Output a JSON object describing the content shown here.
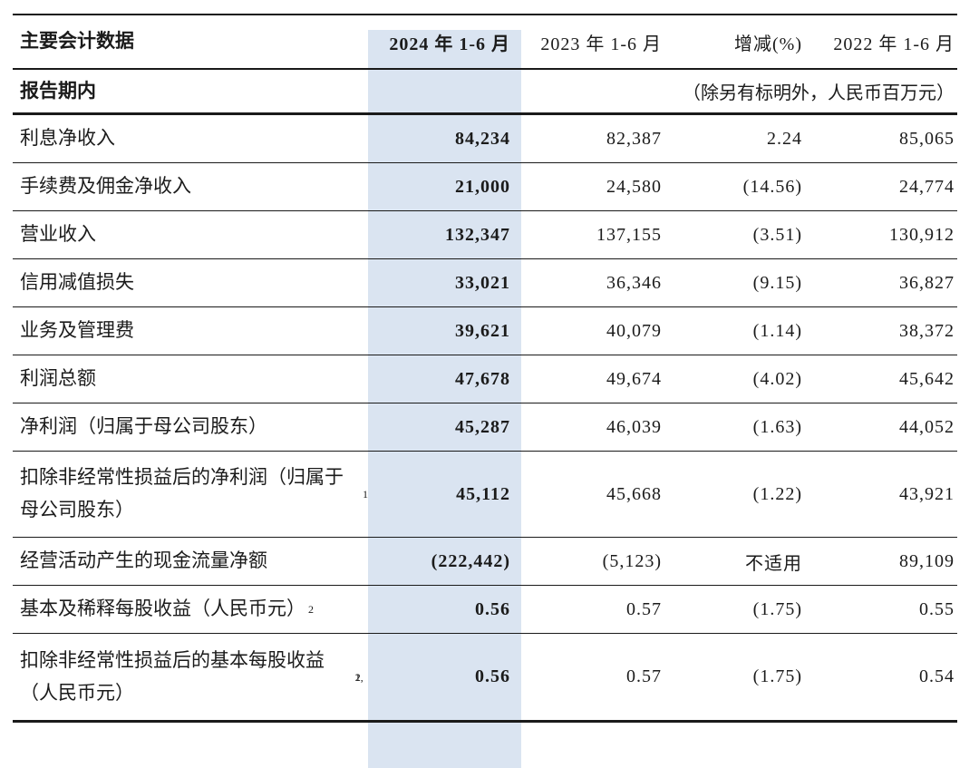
{
  "colors": {
    "highlight": "#dae4f1",
    "rule": "#1a1a1a",
    "text": "#1b1b1b"
  },
  "table": {
    "title": "主要会计数据",
    "columns": [
      "2024 年 1-6 月",
      "2023 年 1-6 月",
      "增减(%)",
      "2022 年 1-6 月"
    ],
    "section_label": "报告期内",
    "unit_note": "（除另有标明外，人民币百万元）",
    "rows": [
      {
        "label": "利息净收入",
        "v2024": "84,234",
        "v2023": "82,387",
        "change": "2.24",
        "v2022": "85,065"
      },
      {
        "label": "手续费及佣金净收入",
        "v2024": "21,000",
        "v2023": "24,580",
        "change": "(14.56)",
        "v2022": "24,774"
      },
      {
        "label": "营业收入",
        "v2024": "132,347",
        "v2023": "137,155",
        "change": "(3.51)",
        "v2022": "130,912"
      },
      {
        "label": "信用减值损失",
        "v2024": "33,021",
        "v2023": "36,346",
        "change": "(9.15)",
        "v2022": "36,827"
      },
      {
        "label": "业务及管理费",
        "v2024": "39,621",
        "v2023": "40,079",
        "change": "(1.14)",
        "v2022": "38,372"
      },
      {
        "label": "利润总额",
        "v2024": "47,678",
        "v2023": "49,674",
        "change": "(4.02)",
        "v2022": "45,642"
      },
      {
        "label": "净利润（归属于母公司股东）",
        "v2024": "45,287",
        "v2023": "46,039",
        "change": "(1.63)",
        "v2022": "44,052"
      },
      {
        "label": "扣除非经常性损益后的净利润（归属于母公司股东）",
        "sup": "1",
        "tall": true,
        "v2024": "45,112",
        "v2023": "45,668",
        "change": "(1.22)",
        "v2022": "43,921"
      },
      {
        "label": "经营活动产生的现金流量净额",
        "v2024": "(222,442)",
        "v2023": "(5,123)",
        "change": "不适用",
        "v2022": "89,109"
      },
      {
        "label": "基本及稀释每股收益（人民币元）",
        "sup": "2",
        "v2024": "0.56",
        "v2023": "0.57",
        "change": "(1.75)",
        "v2022": "0.55"
      },
      {
        "label": "扣除非经常性损益后的基本每股收益（人民币元）",
        "sup": "1, 2",
        "tall": true,
        "v2024": "0.56",
        "v2023": "0.57",
        "change": "(1.75)",
        "v2022": "0.54"
      }
    ]
  }
}
